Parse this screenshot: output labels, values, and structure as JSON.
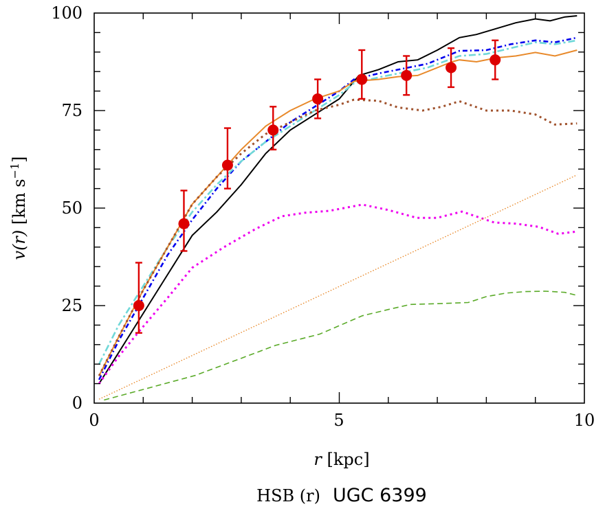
{
  "chart_data": {
    "type": "line",
    "title_prefix": "HSB (r)",
    "title_galaxy": "UGC 6399",
    "xlabel_var": "r",
    "xlabel_unit": "[kpc]",
    "ylabel_var": "v(r)",
    "ylabel_unit": "[km s",
    "ylabel_exp": "−1",
    "ylabel_close": "]",
    "xlim": [
      0,
      10
    ],
    "ylim": [
      0,
      100
    ],
    "xticks": [
      "0",
      "5",
      "10"
    ],
    "yticks": [
      "0",
      "25",
      "50",
      "75",
      "100"
    ],
    "grid": false,
    "observed": {
      "color": "#dd0000",
      "r": [
        0.91,
        1.83,
        2.72,
        3.65,
        4.56,
        5.46,
        6.37,
        7.28,
        8.18
      ],
      "v": [
        25,
        46,
        61,
        70,
        78,
        83,
        84,
        86,
        88
      ],
      "v_low": [
        18,
        39,
        55,
        65,
        73,
        78,
        79,
        81,
        83
      ],
      "v_high": [
        36,
        54.5,
        70.5,
        76,
        83,
        90.5,
        89,
        91,
        93
      ]
    },
    "series": [
      {
        "color": "#000000",
        "style": "solid",
        "r": [
          0.1,
          0.5,
          1,
          1.5,
          2,
          2.5,
          3,
          3.5,
          4,
          4.5,
          5,
          5.4,
          5.8,
          6.2,
          6.6,
          7,
          7.45,
          7.8,
          8.2,
          8.6,
          9,
          9.3,
          9.6,
          9.85
        ],
        "v": [
          5,
          13,
          23,
          33,
          43,
          49,
          56,
          64,
          70,
          74,
          78,
          84,
          85.5,
          87.5,
          88,
          90.5,
          93.7,
          94.5,
          96,
          97.5,
          98.5,
          98,
          99,
          99.3
        ]
      },
      {
        "color": "#0000ee",
        "style": "dashdot",
        "r": [
          0.1,
          0.5,
          1,
          1.5,
          2,
          2.5,
          3,
          3.5,
          4,
          4.5,
          5,
          5.3,
          5.8,
          6.2,
          6.8,
          7.45,
          8,
          8.5,
          9,
          9.4,
          9.85
        ],
        "v": [
          6,
          16,
          27,
          38,
          47,
          55,
          62,
          67,
          72,
          76,
          80,
          83,
          84.5,
          85.5,
          87,
          90.3,
          90.5,
          92,
          93,
          92.5,
          93.7
        ]
      },
      {
        "color": "#70d8d8",
        "style": "dashdotwide",
        "r": [
          0.1,
          0.5,
          1,
          1.5,
          2,
          2.5,
          3,
          3.5,
          4,
          4.5,
          5,
          5.3,
          5.8,
          6.2,
          6.8,
          7.45,
          8,
          8.5,
          9,
          9.4,
          9.85
        ],
        "v": [
          10,
          20,
          30,
          40,
          49,
          56,
          62,
          67,
          71,
          75,
          79,
          82,
          83.5,
          84.5,
          86,
          89,
          89.5,
          91,
          92.5,
          92,
          93
        ]
      },
      {
        "color": "#e8892a",
        "style": "solid",
        "r": [
          0.1,
          0.5,
          1,
          1.5,
          2,
          2.5,
          3,
          3.5,
          4,
          4.5,
          5,
          5.3,
          5.8,
          6.2,
          6.6,
          7,
          7.3,
          7.45,
          7.8,
          8.2,
          8.6,
          9,
          9.4,
          9.85
        ],
        "v": [
          7,
          17,
          29,
          40,
          51,
          58,
          65,
          71,
          75,
          78,
          80,
          82.5,
          83,
          83.7,
          84,
          86,
          87.5,
          88,
          87.5,
          88.5,
          89,
          89.9,
          89,
          90.5
        ]
      },
      {
        "color": "#a0522d",
        "style": "dotted",
        "r": [
          0.1,
          0.5,
          1,
          1.5,
          2,
          2.5,
          3,
          3.5,
          4,
          4.5,
          5,
          5.3,
          5.8,
          6.2,
          6.7,
          7.1,
          7.45,
          8,
          8.5,
          9,
          9.4,
          9.85
        ],
        "v": [
          7,
          17,
          29,
          40,
          51,
          58,
          64,
          69,
          72,
          75,
          76.5,
          77.8,
          77.5,
          75.8,
          75,
          76,
          77.4,
          75,
          75,
          74,
          71.4,
          71.7
        ]
      },
      {
        "color": "#ee00ee",
        "style": "dotted",
        "r": [
          0.1,
          0.5,
          0.91,
          1.5,
          2,
          2.65,
          3.3,
          3.83,
          4.3,
          4.8,
          5.47,
          6,
          6.58,
          7,
          7.5,
          8.16,
          8.6,
          9.07,
          9.47,
          9.85
        ],
        "v": [
          5,
          12,
          18.3,
          27,
          34.7,
          40,
          44.7,
          47.9,
          48.8,
          49.3,
          50.9,
          49.5,
          47.5,
          47.5,
          49.1,
          46.3,
          46,
          45.2,
          43.4,
          44
        ]
      },
      {
        "color": "#e8892a",
        "style": "finedotted",
        "r": [
          0.1,
          9.85
        ],
        "v": [
          1,
          58.5
        ]
      },
      {
        "color": "#5aaa28",
        "style": "dashed",
        "r": [
          0.2,
          1,
          2.06,
          3,
          3.7,
          4.6,
          5.47,
          6,
          6.45,
          7,
          7.63,
          8,
          8.4,
          8.8,
          9.2,
          9.6,
          9.85
        ],
        "v": [
          0.8,
          3.5,
          7.1,
          11.5,
          14.8,
          17.7,
          22.4,
          24,
          25.3,
          25.5,
          25.8,
          27.3,
          28.2,
          28.6,
          28.7,
          28.4,
          27.6
        ]
      }
    ]
  }
}
